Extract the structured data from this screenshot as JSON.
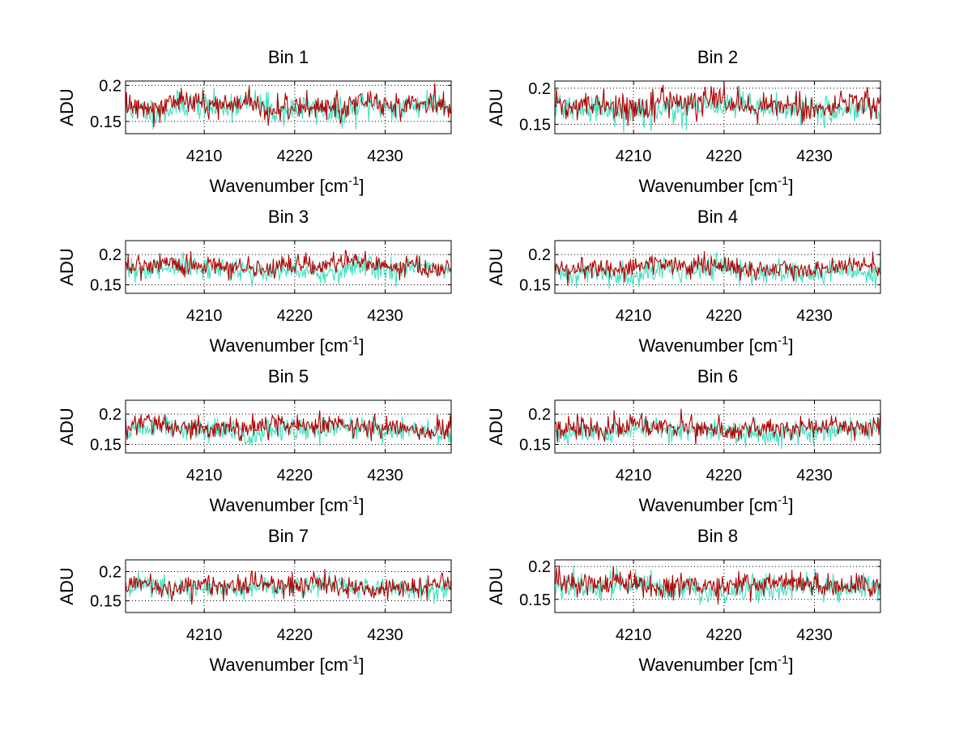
{
  "figure": {
    "background": "#ffffff",
    "axis_color": "#000000"
  },
  "chart_data": [
    {
      "type": "line",
      "title": "Bin 1",
      "xlabel_main": "Wavenumber [cm",
      "xlabel_sup": "-1",
      "xlabel_close": "]",
      "ylabel": "ADU",
      "xlim": [
        4201.3,
        4237.3
      ],
      "ylim": [
        0.133,
        0.206
      ],
      "xticks": [
        4210,
        4220,
        4230
      ],
      "xtick_labels": [
        "4210",
        "4220",
        "4230"
      ],
      "yticks": [
        0.15,
        0.2
      ],
      "ytick_labels": [
        "0.15",
        "0.2"
      ],
      "grid": true,
      "series": [
        {
          "name": "series-1",
          "color": "#40e0c0",
          "mean": 0.169,
          "noise": 0.013,
          "seed": 11
        },
        {
          "name": "series-2",
          "color": "#b00000",
          "mean": 0.172,
          "noise": 0.012,
          "seed": 12
        }
      ]
    },
    {
      "type": "line",
      "title": "Bin 2",
      "xlabel_main": "Wavenumber [cm",
      "xlabel_sup": "-1",
      "xlabel_close": "]",
      "ylabel": "ADU",
      "xlim": [
        4201.3,
        4237.3
      ],
      "ylim": [
        0.137,
        0.21
      ],
      "xticks": [
        4210,
        4220,
        4230
      ],
      "xtick_labels": [
        "4210",
        "4220",
        "4230"
      ],
      "yticks": [
        0.15,
        0.2
      ],
      "ytick_labels": [
        "0.15",
        "0.2"
      ],
      "grid": true,
      "series": [
        {
          "name": "series-1",
          "color": "#40e0c0",
          "mean": 0.172,
          "noise": 0.013,
          "seed": 21
        },
        {
          "name": "series-2",
          "color": "#b00000",
          "mean": 0.178,
          "noise": 0.012,
          "seed": 22
        }
      ]
    },
    {
      "type": "line",
      "title": "Bin 3",
      "xlabel_main": "Wavenumber [cm",
      "xlabel_sup": "-1",
      "xlabel_close": "]",
      "ylabel": "ADU",
      "xlim": [
        4201.3,
        4237.3
      ],
      "ylim": [
        0.136,
        0.223
      ],
      "xticks": [
        4210,
        4220,
        4230
      ],
      "xtick_labels": [
        "4210",
        "4220",
        "4230"
      ],
      "yticks": [
        0.15,
        0.2
      ],
      "ytick_labels": [
        "0.15",
        "0.2"
      ],
      "grid": true,
      "series": [
        {
          "name": "series-1",
          "color": "#40e0c0",
          "mean": 0.174,
          "noise": 0.013,
          "seed": 31
        },
        {
          "name": "series-2",
          "color": "#b00000",
          "mean": 0.181,
          "noise": 0.012,
          "seed": 32
        }
      ]
    },
    {
      "type": "line",
      "title": "Bin 4",
      "xlabel_main": "Wavenumber [cm",
      "xlabel_sup": "-1",
      "xlabel_close": "]",
      "ylabel": "ADU",
      "xlim": [
        4201.3,
        4237.3
      ],
      "ylim": [
        0.136,
        0.223
      ],
      "xticks": [
        4210,
        4220,
        4230
      ],
      "xtick_labels": [
        "4210",
        "4220",
        "4230"
      ],
      "yticks": [
        0.15,
        0.2
      ],
      "ytick_labels": [
        "0.15",
        "0.2"
      ],
      "grid": true,
      "series": [
        {
          "name": "series-1",
          "color": "#40e0c0",
          "mean": 0.172,
          "noise": 0.013,
          "seed": 41
        },
        {
          "name": "series-2",
          "color": "#b00000",
          "mean": 0.179,
          "noise": 0.012,
          "seed": 42
        }
      ]
    },
    {
      "type": "line",
      "title": "Bin 5",
      "xlabel_main": "Wavenumber [cm",
      "xlabel_sup": "-1",
      "xlabel_close": "]",
      "ylabel": "ADU",
      "xlim": [
        4201.3,
        4237.3
      ],
      "ylim": [
        0.136,
        0.223
      ],
      "xticks": [
        4210,
        4220,
        4230
      ],
      "xtick_labels": [
        "4210",
        "4220",
        "4230"
      ],
      "yticks": [
        0.15,
        0.2
      ],
      "ytick_labels": [
        "0.15",
        "0.2"
      ],
      "grid": true,
      "series": [
        {
          "name": "series-1",
          "color": "#40e0c0",
          "mean": 0.173,
          "noise": 0.013,
          "seed": 51
        },
        {
          "name": "series-2",
          "color": "#b00000",
          "mean": 0.18,
          "noise": 0.012,
          "seed": 52
        }
      ]
    },
    {
      "type": "line",
      "title": "Bin 6",
      "xlabel_main": "Wavenumber [cm",
      "xlabel_sup": "-1",
      "xlabel_close": "]",
      "ylabel": "ADU",
      "xlim": [
        4201.3,
        4237.3
      ],
      "ylim": [
        0.136,
        0.223
      ],
      "xticks": [
        4210,
        4220,
        4230
      ],
      "xtick_labels": [
        "4210",
        "4220",
        "4230"
      ],
      "yticks": [
        0.15,
        0.2
      ],
      "ytick_labels": [
        "0.15",
        "0.2"
      ],
      "grid": true,
      "series": [
        {
          "name": "series-1",
          "color": "#40e0c0",
          "mean": 0.172,
          "noise": 0.013,
          "seed": 61
        },
        {
          "name": "series-2",
          "color": "#b00000",
          "mean": 0.177,
          "noise": 0.012,
          "seed": 62
        }
      ]
    },
    {
      "type": "line",
      "title": "Bin 7",
      "xlabel_main": "Wavenumber [cm",
      "xlabel_sup": "-1",
      "xlabel_close": "]",
      "ylabel": "ADU",
      "xlim": [
        4201.3,
        4237.3
      ],
      "ylim": [
        0.13,
        0.22
      ],
      "xticks": [
        4210,
        4220,
        4230
      ],
      "xtick_labels": [
        "4210",
        "4220",
        "4230"
      ],
      "yticks": [
        0.15,
        0.2
      ],
      "ytick_labels": [
        "0.15",
        "0.2"
      ],
      "grid": true,
      "series": [
        {
          "name": "series-1",
          "color": "#40e0c0",
          "mean": 0.173,
          "noise": 0.013,
          "seed": 71
        },
        {
          "name": "series-2",
          "color": "#b00000",
          "mean": 0.176,
          "noise": 0.012,
          "seed": 72
        }
      ]
    },
    {
      "type": "line",
      "title": "Bin 8",
      "xlabel_main": "Wavenumber [cm",
      "xlabel_sup": "-1",
      "xlabel_close": "]",
      "ylabel": "ADU",
      "xlim": [
        4201.3,
        4237.3
      ],
      "ylim": [
        0.13,
        0.21
      ],
      "xticks": [
        4210,
        4220,
        4230
      ],
      "xtick_labels": [
        "4210",
        "4220",
        "4230"
      ],
      "yticks": [
        0.15,
        0.2
      ],
      "ytick_labels": [
        "0.15",
        "0.2"
      ],
      "grid": true,
      "series": [
        {
          "name": "series-1",
          "color": "#40e0c0",
          "mean": 0.168,
          "noise": 0.013,
          "seed": 81
        },
        {
          "name": "series-2",
          "color": "#b00000",
          "mean": 0.172,
          "noise": 0.012,
          "seed": 82
        }
      ]
    }
  ]
}
